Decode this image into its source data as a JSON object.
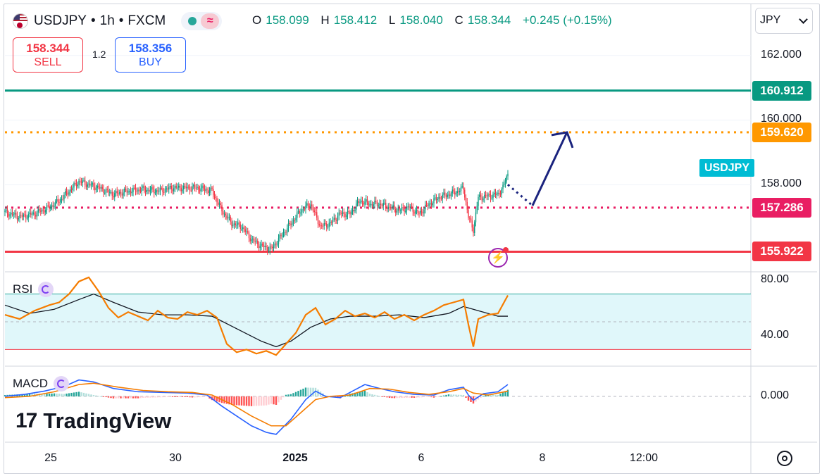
{
  "header": {
    "symbol": "USDJPY",
    "interval": "1h",
    "source": "FXCM",
    "sep": "•",
    "wave_icon": "≈"
  },
  "ohlc": {
    "o_label": "O",
    "o": "158.099",
    "h_label": "H",
    "h": "158.412",
    "l_label": "L",
    "l": "158.040",
    "c_label": "C",
    "c": "158.344",
    "change": "+0.245 (+0.15%)"
  },
  "trade": {
    "sell_price": "158.344",
    "sell_label": "SELL",
    "spread": "1.2",
    "buy_price": "158.356",
    "buy_label": "BUY"
  },
  "currency": "JPY",
  "symbol_tag": "USDJPY",
  "levels": [
    {
      "value": 160.912,
      "label": "160.912",
      "color": "#089981",
      "style": "solid"
    },
    {
      "value": 159.62,
      "label": "159.620",
      "color": "#ff9800",
      "style": "dotted"
    },
    {
      "value": 157.286,
      "label": "157.286",
      "color": "#e91e63",
      "style": "dotted"
    },
    {
      "value": 155.922,
      "label": "155.922",
      "color": "#f23645",
      "style": "solid"
    }
  ],
  "chart_data": {
    "type": "candlestick",
    "price_axis": {
      "ticks": [
        {
          "value": 162,
          "label": "162.000"
        },
        {
          "value": 160,
          "label": "160.000"
        },
        {
          "value": 158,
          "label": "158.000"
        }
      ],
      "ylim": [
        155.3,
        163.5
      ]
    },
    "x_axis_ticks": [
      "25",
      "30",
      "2025",
      "6",
      "8",
      "12:00"
    ],
    "close_path": [
      [
        0,
        157.15
      ],
      [
        3,
        157.0
      ],
      [
        6,
        157.1
      ],
      [
        9,
        157.3
      ],
      [
        11,
        157.5
      ],
      [
        13,
        157.8
      ],
      [
        15,
        158.1
      ],
      [
        17,
        158.0
      ],
      [
        19,
        157.9
      ],
      [
        22,
        157.7
      ],
      [
        25,
        157.8
      ],
      [
        28,
        157.85
      ],
      [
        31,
        157.8
      ],
      [
        34,
        157.9
      ],
      [
        37,
        157.9
      ],
      [
        39,
        157.9
      ],
      [
        42,
        157.8
      ],
      [
        44,
        157.2
      ],
      [
        46,
        156.8
      ],
      [
        48,
        156.7
      ],
      [
        50,
        156.3
      ],
      [
        52,
        156.1
      ],
      [
        54,
        156.0
      ],
      [
        56,
        156.4
      ],
      [
        58,
        156.8
      ],
      [
        60,
        157.2
      ],
      [
        62,
        157.4
      ],
      [
        64,
        156.7
      ],
      [
        66,
        156.8
      ],
      [
        68,
        157.1
      ],
      [
        70,
        157.1
      ],
      [
        72,
        157.5
      ],
      [
        74,
        157.4
      ],
      [
        76,
        157.4
      ],
      [
        78,
        157.3
      ],
      [
        80,
        157.2
      ],
      [
        82,
        157.3
      ],
      [
        84,
        157.1
      ],
      [
        86,
        157.4
      ],
      [
        88,
        157.6
      ],
      [
        90,
        157.7
      ],
      [
        92,
        157.8
      ],
      [
        93,
        157.9
      ],
      [
        94,
        157.0
      ],
      [
        95,
        156.6
      ],
      [
        96,
        157.6
      ],
      [
        98,
        157.65
      ],
      [
        100,
        157.7
      ],
      [
        101,
        157.9
      ],
      [
        102,
        158.344
      ]
    ],
    "projection": {
      "path": [
        [
          102,
          158.0
        ],
        [
          107,
          157.35
        ],
        [
          114,
          159.62
        ]
      ],
      "color": "#1a237e"
    },
    "rsi": {
      "title": "RSI",
      "ticks": [
        {
          "value": 80,
          "label": "80.00"
        },
        {
          "value": 40,
          "label": "40.00"
        }
      ],
      "band": [
        30,
        70
      ],
      "ylim": [
        18,
        85
      ],
      "values": [
        [
          0,
          55
        ],
        [
          3,
          52
        ],
        [
          6,
          58
        ],
        [
          9,
          62
        ],
        [
          11,
          64
        ],
        [
          13,
          70
        ],
        [
          15,
          79
        ],
        [
          17,
          82
        ],
        [
          19,
          72
        ],
        [
          21,
          60
        ],
        [
          23,
          53
        ],
        [
          25,
          57
        ],
        [
          27,
          54
        ],
        [
          29,
          51
        ],
        [
          31,
          58
        ],
        [
          33,
          53
        ],
        [
          35,
          52
        ],
        [
          37,
          57
        ],
        [
          39,
          55
        ],
        [
          41,
          58
        ],
        [
          43,
          53
        ],
        [
          45,
          34
        ],
        [
          47,
          28
        ],
        [
          49,
          30
        ],
        [
          51,
          27
        ],
        [
          53,
          29
        ],
        [
          55,
          26
        ],
        [
          57,
          34
        ],
        [
          59,
          42
        ],
        [
          61,
          55
        ],
        [
          63,
          60
        ],
        [
          65,
          48
        ],
        [
          67,
          52
        ],
        [
          69,
          58
        ],
        [
          71,
          54
        ],
        [
          73,
          56
        ],
        [
          75,
          53
        ],
        [
          77,
          57
        ],
        [
          79,
          52
        ],
        [
          81,
          55
        ],
        [
          83,
          51
        ],
        [
          85,
          55
        ],
        [
          87,
          58
        ],
        [
          89,
          62
        ],
        [
          91,
          64
        ],
        [
          93,
          66
        ],
        [
          94,
          48
        ],
        [
          95,
          32
        ],
        [
          96,
          52
        ],
        [
          98,
          55
        ],
        [
          100,
          56
        ],
        [
          102,
          69
        ]
      ],
      "ma": [
        [
          0,
          62
        ],
        [
          5,
          56
        ],
        [
          10,
          59
        ],
        [
          15,
          66
        ],
        [
          18,
          70
        ],
        [
          22,
          64
        ],
        [
          27,
          57
        ],
        [
          32,
          55
        ],
        [
          37,
          55
        ],
        [
          42,
          54
        ],
        [
          47,
          45
        ],
        [
          52,
          36
        ],
        [
          55,
          32
        ],
        [
          58,
          36
        ],
        [
          62,
          46
        ],
        [
          66,
          52
        ],
        [
          70,
          54
        ],
        [
          75,
          54
        ],
        [
          80,
          55
        ],
        [
          85,
          53
        ],
        [
          90,
          56
        ],
        [
          93,
          61
        ],
        [
          96,
          58
        ],
        [
          100,
          54
        ],
        [
          102,
          54
        ]
      ]
    },
    "macd": {
      "title": "MACD",
      "ticks": [
        {
          "value": 0,
          "label": "0.000"
        }
      ],
      "ylim": [
        -0.7,
        0.45
      ],
      "macd": [
        [
          0,
          0.0
        ],
        [
          4,
          0.03
        ],
        [
          8,
          0.08
        ],
        [
          12,
          0.15
        ],
        [
          15,
          0.25
        ],
        [
          18,
          0.22
        ],
        [
          22,
          0.12
        ],
        [
          27,
          0.07
        ],
        [
          32,
          0.06
        ],
        [
          37,
          0.05
        ],
        [
          41,
          0.02
        ],
        [
          44,
          -0.15
        ],
        [
          47,
          -0.3
        ],
        [
          50,
          -0.45
        ],
        [
          53,
          -0.55
        ],
        [
          55,
          -0.58
        ],
        [
          58,
          -0.35
        ],
        [
          61,
          -0.05
        ],
        [
          63,
          0.08
        ],
        [
          65,
          0.0
        ],
        [
          68,
          -0.02
        ],
        [
          71,
          0.1
        ],
        [
          73,
          0.18
        ],
        [
          76,
          0.12
        ],
        [
          79,
          0.07
        ],
        [
          83,
          0.03
        ],
        [
          87,
          0.02
        ],
        [
          90,
          0.1
        ],
        [
          93,
          0.14
        ],
        [
          94,
          0.02
        ],
        [
          95,
          -0.06
        ],
        [
          97,
          0.04
        ],
        [
          100,
          0.07
        ],
        [
          102,
          0.18
        ]
      ],
      "signal": [
        [
          0,
          -0.02
        ],
        [
          5,
          0.0
        ],
        [
          10,
          0.07
        ],
        [
          15,
          0.18
        ],
        [
          18,
          0.2
        ],
        [
          23,
          0.14
        ],
        [
          28,
          0.09
        ],
        [
          33,
          0.07
        ],
        [
          38,
          0.06
        ],
        [
          42,
          0.02
        ],
        [
          46,
          -0.12
        ],
        [
          50,
          -0.3
        ],
        [
          54,
          -0.45
        ],
        [
          57,
          -0.45
        ],
        [
          60,
          -0.25
        ],
        [
          63,
          -0.05
        ],
        [
          66,
          0.0
        ],
        [
          70,
          0.02
        ],
        [
          74,
          0.12
        ],
        [
          78,
          0.11
        ],
        [
          82,
          0.06
        ],
        [
          86,
          0.03
        ],
        [
          90,
          0.07
        ],
        [
          93,
          0.12
        ],
        [
          95,
          0.05
        ],
        [
          98,
          0.02
        ],
        [
          102,
          0.08
        ]
      ]
    }
  },
  "indicators": {
    "rsi_label": "RSI",
    "macd_label": "MACD"
  },
  "logo": {
    "mark": "17",
    "text": "TradingView"
  },
  "bolt": "⚡"
}
